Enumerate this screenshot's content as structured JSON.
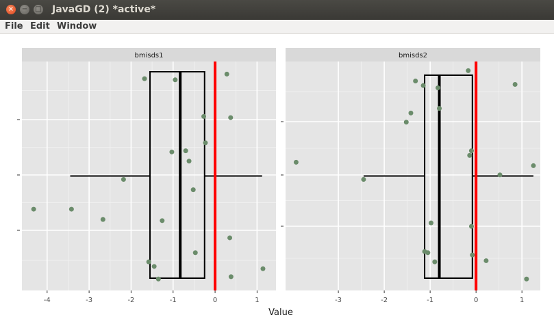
{
  "window": {
    "title": "JavaGD (2) *active*"
  },
  "menu": {
    "file": "File",
    "edit": "Edit",
    "window": "Window"
  },
  "chart_data": [
    {
      "type": "scatter",
      "panel": "bmisds1",
      "title": "",
      "xlabel": "Value",
      "ylabel": "",
      "xlim": [
        -4.6,
        1.45
      ],
      "ylim": [
        0,
        1
      ],
      "x_ticks": [
        -4,
        -3,
        -2,
        -1,
        0,
        1
      ],
      "vline": 0,
      "vline_color": "#ff0000",
      "point_color": "#6b8c6b",
      "box": {
        "q1": -1.55,
        "median": -0.83,
        "q3": -0.25,
        "whisker_low": -3.45,
        "whisker_high": 1.12
      },
      "points": [
        {
          "x": -4.32,
          "y": 0.355
        },
        {
          "x": -3.42,
          "y": 0.355
        },
        {
          "x": -2.67,
          "y": 0.31
        },
        {
          "x": -2.18,
          "y": 0.485
        },
        {
          "x": -1.68,
          "y": 0.925
        },
        {
          "x": -1.58,
          "y": 0.125
        },
        {
          "x": -1.45,
          "y": 0.105
        },
        {
          "x": -1.35,
          "y": 0.05
        },
        {
          "x": -1.26,
          "y": 0.305
        },
        {
          "x": -1.03,
          "y": 0.605
        },
        {
          "x": -0.95,
          "y": 0.92
        },
        {
          "x": -0.7,
          "y": 0.61
        },
        {
          "x": -0.62,
          "y": 0.565
        },
        {
          "x": -0.52,
          "y": 0.44
        },
        {
          "x": -0.47,
          "y": 0.165
        },
        {
          "x": -0.27,
          "y": 0.76
        },
        {
          "x": -0.23,
          "y": 0.645
        },
        {
          "x": 0.28,
          "y": 0.945
        },
        {
          "x": 0.35,
          "y": 0.23
        },
        {
          "x": 0.37,
          "y": 0.755
        },
        {
          "x": 0.38,
          "y": 0.06
        },
        {
          "x": 1.14,
          "y": 0.095
        }
      ]
    },
    {
      "type": "scatter",
      "panel": "bmisds2",
      "title": "",
      "xlabel": "Value",
      "ylabel": "",
      "xlim": [
        -4.15,
        1.4
      ],
      "ylim": [
        0,
        1
      ],
      "x_ticks": [
        -3,
        -2,
        -1,
        0,
        1
      ],
      "vline": 0,
      "vline_color": "#ff0000",
      "point_color": "#6b8c6b",
      "box": {
        "q1": -1.12,
        "median": -0.8,
        "q3": -0.08,
        "whisker_low": -2.45,
        "whisker_high": 1.25
      },
      "points": [
        {
          "x": -3.92,
          "y": 0.56
        },
        {
          "x": -2.45,
          "y": 0.485
        },
        {
          "x": -1.52,
          "y": 0.735
        },
        {
          "x": -1.42,
          "y": 0.775
        },
        {
          "x": -1.32,
          "y": 0.915
        },
        {
          "x": -1.15,
          "y": 0.895
        },
        {
          "x": -1.12,
          "y": 0.17
        },
        {
          "x": -1.05,
          "y": 0.165
        },
        {
          "x": -0.98,
          "y": 0.295
        },
        {
          "x": -0.9,
          "y": 0.125
        },
        {
          "x": -0.83,
          "y": 0.885
        },
        {
          "x": -0.8,
          "y": 0.795
        },
        {
          "x": -0.17,
          "y": 0.96
        },
        {
          "x": -0.14,
          "y": 0.59
        },
        {
          "x": -0.1,
          "y": 0.61
        },
        {
          "x": -0.1,
          "y": 0.28
        },
        {
          "x": -0.08,
          "y": 0.155
        },
        {
          "x": 0.22,
          "y": 0.13
        },
        {
          "x": 0.52,
          "y": 0.505
        },
        {
          "x": 0.85,
          "y": 0.9
        },
        {
          "x": 1.1,
          "y": 0.05
        },
        {
          "x": 1.25,
          "y": 0.545
        }
      ]
    }
  ]
}
